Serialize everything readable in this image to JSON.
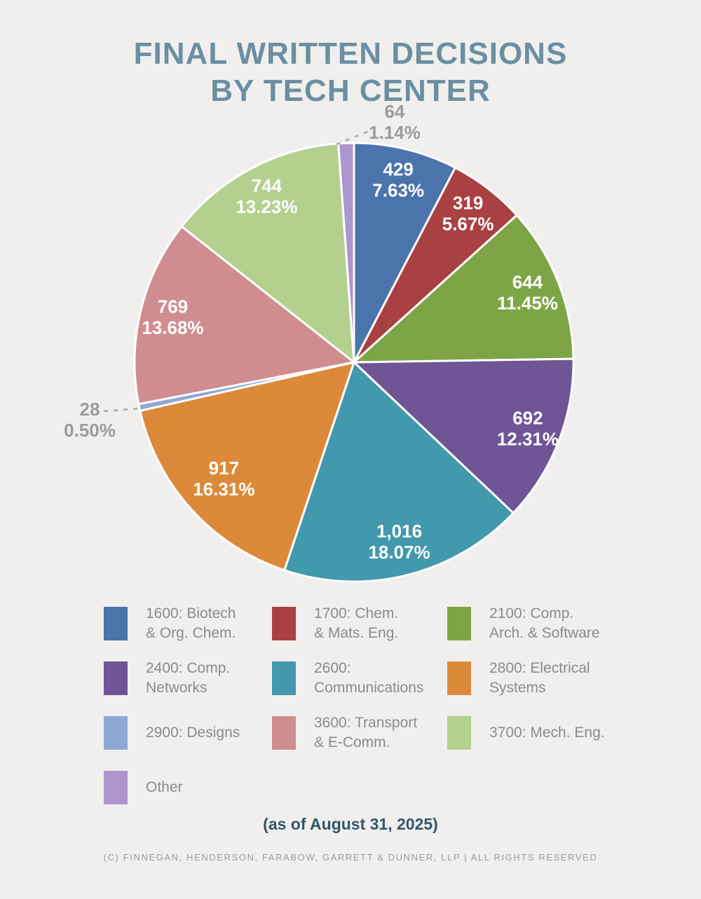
{
  "title": {
    "line1": "FINAL WRITTEN DECISIONS",
    "line2": "BY TECH CENTER"
  },
  "chart_data": {
    "type": "pie",
    "title": "Final Written Decisions by Tech Center",
    "start_angle_deg": 0,
    "direction": "clockwise",
    "legend_position": "bottom",
    "slices": [
      {
        "id": "1600",
        "legend_lines": [
          "1600: Biotech",
          "& Org. Chem."
        ],
        "value": 429,
        "value_label": "429",
        "pct": 7.63,
        "pct_label": "7.63%",
        "color": "#4a74ab",
        "label_placement": "inside"
      },
      {
        "id": "1700",
        "legend_lines": [
          "1700: Chem.",
          "& Mats. Eng."
        ],
        "value": 319,
        "value_label": "319",
        "pct": 5.67,
        "pct_label": "5.67%",
        "color": "#a94142",
        "label_placement": "inside"
      },
      {
        "id": "2100",
        "legend_lines": [
          "2100: Comp.",
          "Arch. & Software"
        ],
        "value": 644,
        "value_label": "644",
        "pct": 11.45,
        "pct_label": "11.45%",
        "color": "#7ea545",
        "label_placement": "inside"
      },
      {
        "id": "2400",
        "legend_lines": [
          "2400: Comp.",
          "Networks"
        ],
        "value": 692,
        "value_label": "692",
        "pct": 12.31,
        "pct_label": "12.31%",
        "color": "#6f5596",
        "label_placement": "inside"
      },
      {
        "id": "2600",
        "legend_lines": [
          "2600:",
          "Communications"
        ],
        "value": 1016,
        "value_label": "1,016",
        "pct": 18.07,
        "pct_label": "18.07%",
        "color": "#4298ac",
        "label_placement": "inside"
      },
      {
        "id": "2800",
        "legend_lines": [
          "2800: Electrical",
          "Systems"
        ],
        "value": 917,
        "value_label": "917",
        "pct": 16.31,
        "pct_label": "16.31%",
        "color": "#dc8a3a",
        "label_placement": "inside"
      },
      {
        "id": "2900",
        "legend_lines": [
          "2900: Designs"
        ],
        "value": 28,
        "value_label": "28",
        "pct": 0.5,
        "pct_label": "0.50%",
        "color": "#91a8d4",
        "label_placement": "outside"
      },
      {
        "id": "3600",
        "legend_lines": [
          "3600: Transport",
          "& E-Comm."
        ],
        "value": 769,
        "value_label": "769",
        "pct": 13.68,
        "pct_label": "13.68%",
        "color": "#d08d8f",
        "label_placement": "inside"
      },
      {
        "id": "3700",
        "legend_lines": [
          "3700: Mech. Eng."
        ],
        "value": 744,
        "value_label": "744",
        "pct": 13.23,
        "pct_label": "13.23%",
        "color": "#b4d08f",
        "label_placement": "inside"
      },
      {
        "id": "other",
        "legend_lines": [
          "Other"
        ],
        "value": 64,
        "value_label": "64",
        "pct": 1.14,
        "pct_label": "1.14%",
        "color": "#ac96cb",
        "label_placement": "outside"
      }
    ]
  },
  "footer": {
    "as_of": "(as of August 31, 2025)",
    "copyright": "(C) FINNEGAN, HENDERSON, FARABOW, GARRETT & DUNNER, LLP | ALL RIGHTS RESERVED"
  }
}
